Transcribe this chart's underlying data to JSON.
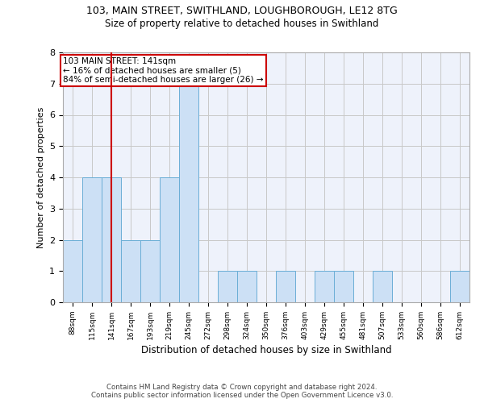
{
  "title1": "103, MAIN STREET, SWITHLAND, LOUGHBOROUGH, LE12 8TG",
  "title2": "Size of property relative to detached houses in Swithland",
  "xlabel": "Distribution of detached houses by size in Swithland",
  "ylabel": "Number of detached properties",
  "categories": [
    "88sqm",
    "115sqm",
    "141sqm",
    "167sqm",
    "193sqm",
    "219sqm",
    "245sqm",
    "272sqm",
    "298sqm",
    "324sqm",
    "350sqm",
    "376sqm",
    "403sqm",
    "429sqm",
    "455sqm",
    "481sqm",
    "507sqm",
    "533sqm",
    "560sqm",
    "586sqm",
    "612sqm"
  ],
  "values": [
    2,
    4,
    4,
    2,
    2,
    4,
    7,
    0,
    1,
    1,
    0,
    1,
    0,
    1,
    1,
    0,
    1,
    0,
    0,
    0,
    1
  ],
  "bar_color": "#cce0f5",
  "bar_edge_color": "#6baed6",
  "vline_x": 2,
  "vline_color": "#cc0000",
  "annotation_text": "103 MAIN STREET: 141sqm\n← 16% of detached houses are smaller (5)\n84% of semi-detached houses are larger (26) →",
  "annotation_box_color": "white",
  "annotation_box_edge_color": "#cc0000",
  "ylim": [
    0,
    8
  ],
  "yticks": [
    0,
    1,
    2,
    3,
    4,
    5,
    6,
    7,
    8
  ],
  "footer": "Contains HM Land Registry data © Crown copyright and database right 2024.\nContains public sector information licensed under the Open Government Licence v3.0.",
  "plot_bg_color": "#eef2fb"
}
